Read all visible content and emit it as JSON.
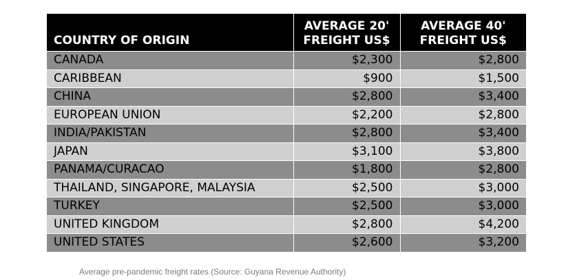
{
  "chart_data": {
    "type": "table",
    "columns": [
      "COUNTRY OF ORIGIN",
      "AVERAGE 20'",
      "FREIGHT US$",
      "AVERAGE 40'",
      "FREIGHT US$"
    ],
    "headers": {
      "country": "COUNTRY OF ORIGIN",
      "col20_line1": "AVERAGE 20'",
      "col20_line2": "FREIGHT US$",
      "col40_line1": "AVERAGE 40'",
      "col40_line2": "FREIGHT US$"
    },
    "rows": [
      {
        "country": "CANADA",
        "avg20": "$2,300",
        "avg40": "$2,800"
      },
      {
        "country": "CARIBBEAN",
        "avg20": "$900",
        "avg40": "$1,500"
      },
      {
        "country": "CHINA",
        "avg20": "$2,800",
        "avg40": "$3,400"
      },
      {
        "country": "EUROPEAN UNION",
        "avg20": "$2,200",
        "avg40": "$2,800"
      },
      {
        "country": "INDIA/PAKISTAN",
        "avg20": "$2,800",
        "avg40": "$3,400"
      },
      {
        "country": "JAPAN",
        "avg20": "$3,100",
        "avg40": "$3,800"
      },
      {
        "country": "PANAMA/CURACAO",
        "avg20": "$1,800",
        "avg40": "$2,800"
      },
      {
        "country": "THAILAND, SINGAPORE, MALAYSIA",
        "avg20": "$2,500",
        "avg40": "$3,000"
      },
      {
        "country": "TURKEY",
        "avg20": "$2,500",
        "avg40": "$3,000"
      },
      {
        "country": "UNITED KINGDOM",
        "avg20": "$2,800",
        "avg40": "$4,200"
      },
      {
        "country": "UNITED STATES",
        "avg20": "$2,600",
        "avg40": "$3,200"
      }
    ],
    "caption": "Average pre-pandemic freight rates (Source: Guyana Revenue Authority)",
    "colors": {
      "header_bg": "#000000",
      "header_text": "#ffffff",
      "row_dark": "#8c8c8c",
      "row_light": "#cfcfcf"
    }
  }
}
